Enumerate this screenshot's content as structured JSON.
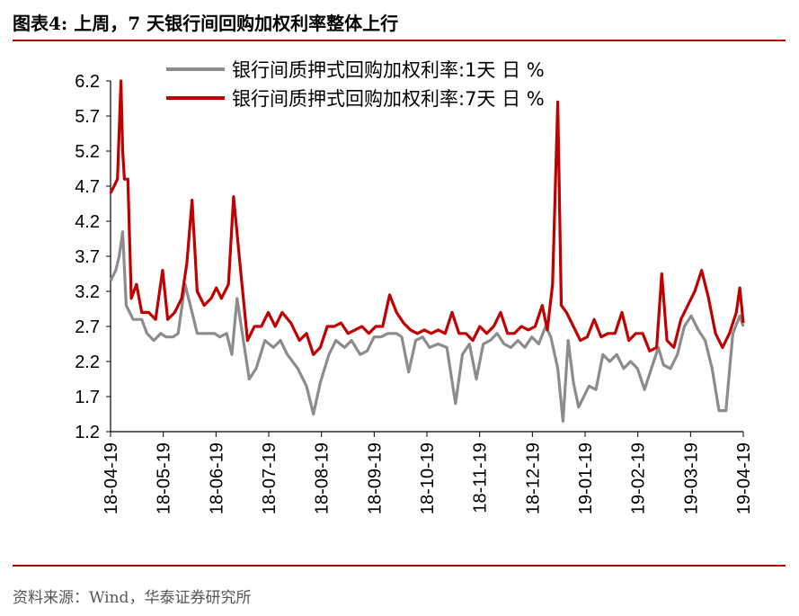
{
  "header": {
    "title": "图表4:  上周，7 天银行间回购加权利率整体上行"
  },
  "footer": {
    "source": "资料来源：Wind，华泰证券研究所"
  },
  "chart_data": {
    "type": "line",
    "title": "图表4:  上周，7 天银行间回购加权利率整体上行",
    "xlabel": "",
    "ylabel": "",
    "ylim": [
      1.2,
      6.2
    ],
    "y_ticks": [
      "1.2",
      "1.7",
      "2.2",
      "2.7",
      "3.2",
      "3.7",
      "4.2",
      "4.7",
      "5.2",
      "5.7",
      "6.2"
    ],
    "x_ticks": [
      "18-04-19",
      "18-05-19",
      "18-06-19",
      "18-07-19",
      "18-08-19",
      "18-09-19",
      "18-10-19",
      "18-11-19",
      "18-12-19",
      "19-01-19",
      "19-02-19",
      "19-03-19",
      "19-04-19"
    ],
    "x_range": [
      "2018-04-19",
      "2019-04-19"
    ],
    "legend_position": "top",
    "grid": false,
    "series": [
      {
        "name": "银行间质押式回购加权利率:1天  日  %",
        "color": "#8c8c8c",
        "points": [
          [
            "2018-04-19",
            3.35
          ],
          [
            "2018-04-22",
            3.5
          ],
          [
            "2018-04-24",
            3.7
          ],
          [
            "2018-04-26",
            4.05
          ],
          [
            "2018-04-28",
            3.0
          ],
          [
            "2018-05-02",
            2.8
          ],
          [
            "2018-05-07",
            2.8
          ],
          [
            "2018-05-10",
            2.6
          ],
          [
            "2018-05-14",
            2.5
          ],
          [
            "2018-05-18",
            2.6
          ],
          [
            "2018-05-21",
            2.55
          ],
          [
            "2018-05-25",
            2.55
          ],
          [
            "2018-05-28",
            2.6
          ],
          [
            "2018-06-01",
            3.3
          ],
          [
            "2018-06-05",
            2.9
          ],
          [
            "2018-06-08",
            2.6
          ],
          [
            "2018-06-13",
            2.6
          ],
          [
            "2018-06-18",
            2.6
          ],
          [
            "2018-06-21",
            2.55
          ],
          [
            "2018-06-25",
            2.6
          ],
          [
            "2018-06-28",
            2.3
          ],
          [
            "2018-07-01",
            3.1
          ],
          [
            "2018-07-04",
            2.6
          ],
          [
            "2018-07-08",
            1.95
          ],
          [
            "2018-07-12",
            2.1
          ],
          [
            "2018-07-17",
            2.5
          ],
          [
            "2018-07-22",
            2.4
          ],
          [
            "2018-07-26",
            2.5
          ],
          [
            "2018-07-30",
            2.3
          ],
          [
            "2018-08-05",
            2.1
          ],
          [
            "2018-08-10",
            1.85
          ],
          [
            "2018-08-14",
            1.45
          ],
          [
            "2018-08-18",
            1.9
          ],
          [
            "2018-08-23",
            2.3
          ],
          [
            "2018-08-27",
            2.5
          ],
          [
            "2018-09-01",
            2.4
          ],
          [
            "2018-09-05",
            2.5
          ],
          [
            "2018-09-10",
            2.3
          ],
          [
            "2018-09-14",
            2.35
          ],
          [
            "2018-09-18",
            2.55
          ],
          [
            "2018-09-22",
            2.55
          ],
          [
            "2018-09-26",
            2.6
          ],
          [
            "2018-10-01",
            2.6
          ],
          [
            "2018-10-04",
            2.55
          ],
          [
            "2018-10-08",
            2.05
          ],
          [
            "2018-10-12",
            2.5
          ],
          [
            "2018-10-16",
            2.55
          ],
          [
            "2018-10-20",
            2.4
          ],
          [
            "2018-10-25",
            2.45
          ],
          [
            "2018-10-30",
            2.4
          ],
          [
            "2018-11-04",
            1.6
          ],
          [
            "2018-11-08",
            2.3
          ],
          [
            "2018-11-12",
            2.45
          ],
          [
            "2018-11-16",
            1.95
          ],
          [
            "2018-11-20",
            2.45
          ],
          [
            "2018-11-24",
            2.5
          ],
          [
            "2018-11-28",
            2.6
          ],
          [
            "2018-12-02",
            2.45
          ],
          [
            "2018-12-06",
            2.4
          ],
          [
            "2018-12-10",
            2.5
          ],
          [
            "2018-12-14",
            2.4
          ],
          [
            "2018-12-18",
            2.55
          ],
          [
            "2018-12-22",
            2.45
          ],
          [
            "2018-12-26",
            2.7
          ],
          [
            "2018-12-29",
            2.55
          ],
          [
            "2019-01-02",
            2.1
          ],
          [
            "2019-01-05",
            1.35
          ],
          [
            "2019-01-08",
            2.5
          ],
          [
            "2019-01-11",
            1.9
          ],
          [
            "2019-01-14",
            1.55
          ],
          [
            "2019-01-17",
            1.7
          ],
          [
            "2019-01-20",
            1.85
          ],
          [
            "2019-01-24",
            1.8
          ],
          [
            "2019-01-28",
            2.3
          ],
          [
            "2019-02-01",
            2.2
          ],
          [
            "2019-02-05",
            2.3
          ],
          [
            "2019-02-09",
            2.1
          ],
          [
            "2019-02-13",
            2.2
          ],
          [
            "2019-02-17",
            2.1
          ],
          [
            "2019-02-21",
            1.8
          ],
          [
            "2019-02-25",
            2.1
          ],
          [
            "2019-03-01",
            2.4
          ],
          [
            "2019-03-04",
            2.15
          ],
          [
            "2019-03-08",
            2.1
          ],
          [
            "2019-03-12",
            2.3
          ],
          [
            "2019-03-16",
            2.7
          ],
          [
            "2019-03-20",
            2.85
          ],
          [
            "2019-03-24",
            2.65
          ],
          [
            "2019-03-28",
            2.5
          ],
          [
            "2019-04-01",
            2.1
          ],
          [
            "2019-04-05",
            1.5
          ],
          [
            "2019-04-09",
            1.5
          ],
          [
            "2019-04-13",
            2.6
          ],
          [
            "2019-04-17",
            2.85
          ],
          [
            "2019-04-19",
            2.7
          ]
        ]
      },
      {
        "name": "银行间质押式回购加权利率:7天  日  %",
        "color": "#c00000",
        "points": [
          [
            "2018-04-19",
            4.6
          ],
          [
            "2018-04-21",
            4.7
          ],
          [
            "2018-04-23",
            4.8
          ],
          [
            "2018-04-25",
            6.2
          ],
          [
            "2018-04-26",
            5.2
          ],
          [
            "2018-04-27",
            4.8
          ],
          [
            "2018-04-29",
            4.8
          ],
          [
            "2018-05-01",
            3.1
          ],
          [
            "2018-05-04",
            3.3
          ],
          [
            "2018-05-07",
            2.9
          ],
          [
            "2018-05-11",
            2.9
          ],
          [
            "2018-05-15",
            2.8
          ],
          [
            "2018-05-19",
            3.5
          ],
          [
            "2018-05-22",
            2.8
          ],
          [
            "2018-05-26",
            2.9
          ],
          [
            "2018-05-30",
            3.1
          ],
          [
            "2018-06-02",
            3.6
          ],
          [
            "2018-06-05",
            4.5
          ],
          [
            "2018-06-08",
            3.2
          ],
          [
            "2018-06-12",
            3.0
          ],
          [
            "2018-06-16",
            3.1
          ],
          [
            "2018-06-19",
            3.25
          ],
          [
            "2018-06-22",
            3.1
          ],
          [
            "2018-06-26",
            3.3
          ],
          [
            "2018-06-29",
            4.55
          ],
          [
            "2018-07-03",
            3.5
          ],
          [
            "2018-07-07",
            2.5
          ],
          [
            "2018-07-11",
            2.7
          ],
          [
            "2018-07-15",
            2.7
          ],
          [
            "2018-07-19",
            2.9
          ],
          [
            "2018-07-23",
            2.7
          ],
          [
            "2018-07-27",
            2.9
          ],
          [
            "2018-08-01",
            2.75
          ],
          [
            "2018-08-06",
            2.5
          ],
          [
            "2018-08-10",
            2.6
          ],
          [
            "2018-08-14",
            2.3
          ],
          [
            "2018-08-18",
            2.4
          ],
          [
            "2018-08-22",
            2.7
          ],
          [
            "2018-08-26",
            2.7
          ],
          [
            "2018-08-30",
            2.75
          ],
          [
            "2018-09-03",
            2.6
          ],
          [
            "2018-09-07",
            2.65
          ],
          [
            "2018-09-11",
            2.7
          ],
          [
            "2018-09-15",
            2.6
          ],
          [
            "2018-09-19",
            2.7
          ],
          [
            "2018-09-23",
            2.7
          ],
          [
            "2018-09-27",
            3.15
          ],
          [
            "2018-10-01",
            2.9
          ],
          [
            "2018-10-05",
            2.75
          ],
          [
            "2018-10-09",
            2.65
          ],
          [
            "2018-10-13",
            2.6
          ],
          [
            "2018-10-17",
            2.65
          ],
          [
            "2018-10-21",
            2.6
          ],
          [
            "2018-10-25",
            2.65
          ],
          [
            "2018-10-29",
            2.6
          ],
          [
            "2018-11-02",
            2.9
          ],
          [
            "2018-11-06",
            2.6
          ],
          [
            "2018-11-10",
            2.6
          ],
          [
            "2018-11-14",
            2.5
          ],
          [
            "2018-11-18",
            2.7
          ],
          [
            "2018-11-22",
            2.6
          ],
          [
            "2018-11-26",
            2.7
          ],
          [
            "2018-11-30",
            2.9
          ],
          [
            "2018-12-04",
            2.6
          ],
          [
            "2018-12-08",
            2.6
          ],
          [
            "2018-12-12",
            2.7
          ],
          [
            "2018-12-16",
            2.65
          ],
          [
            "2018-12-20",
            2.7
          ],
          [
            "2018-12-24",
            3.0
          ],
          [
            "2018-12-27",
            2.65
          ],
          [
            "2018-12-30",
            3.3
          ],
          [
            "2019-01-02",
            5.9
          ],
          [
            "2019-01-04",
            3.0
          ],
          [
            "2019-01-07",
            2.9
          ],
          [
            "2019-01-11",
            2.7
          ],
          [
            "2019-01-15",
            2.5
          ],
          [
            "2019-01-19",
            2.55
          ],
          [
            "2019-01-23",
            2.8
          ],
          [
            "2019-01-27",
            2.55
          ],
          [
            "2019-01-31",
            2.6
          ],
          [
            "2019-02-04",
            2.6
          ],
          [
            "2019-02-08",
            2.9
          ],
          [
            "2019-02-12",
            2.5
          ],
          [
            "2019-02-16",
            2.6
          ],
          [
            "2019-02-20",
            2.6
          ],
          [
            "2019-02-24",
            2.35
          ],
          [
            "2019-02-28",
            2.4
          ],
          [
            "2019-03-03",
            3.45
          ],
          [
            "2019-03-06",
            2.5
          ],
          [
            "2019-03-10",
            2.4
          ],
          [
            "2019-03-14",
            2.8
          ],
          [
            "2019-03-18",
            3.0
          ],
          [
            "2019-03-22",
            3.2
          ],
          [
            "2019-03-26",
            3.5
          ],
          [
            "2019-03-30",
            3.1
          ],
          [
            "2019-04-03",
            2.6
          ],
          [
            "2019-04-07",
            2.4
          ],
          [
            "2019-04-11",
            2.6
          ],
          [
            "2019-04-15",
            2.9
          ],
          [
            "2019-04-17",
            3.25
          ],
          [
            "2019-04-19",
            2.75
          ]
        ]
      }
    ]
  }
}
